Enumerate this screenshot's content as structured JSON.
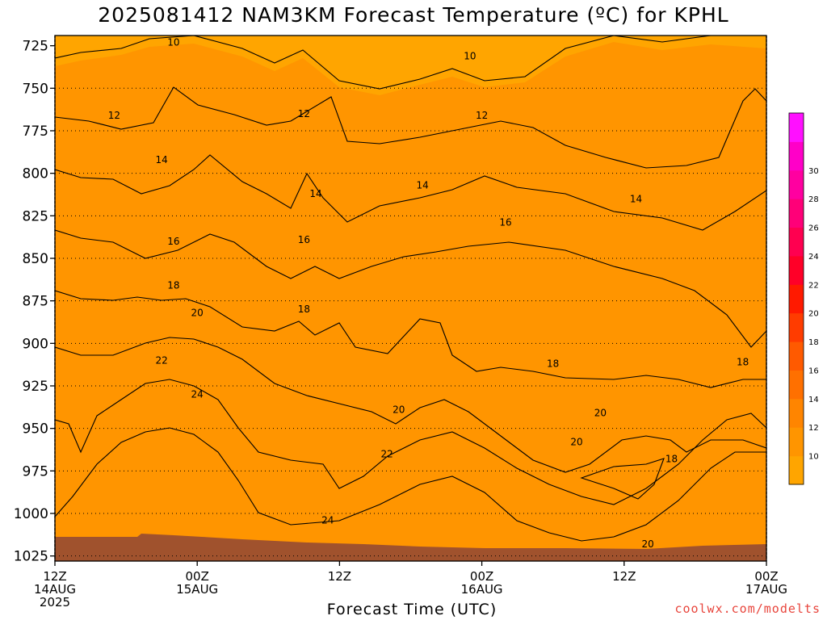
{
  "chart_data": {
    "type": "contour",
    "title": "2025081412 NAM3KM Forecast Temperature (ºC) for KPHL",
    "xlabel": "Forecast Time (UTC)",
    "credit": "coolwx.com/modelts",
    "y_axis": {
      "quantity": "pressure (hPa)",
      "inverted": true,
      "ylim": [
        1028,
        719
      ],
      "ticks": [
        725,
        750,
        775,
        800,
        825,
        850,
        875,
        900,
        925,
        950,
        975,
        1000,
        1025
      ]
    },
    "x_axis": {
      "xlim": [
        "2025-08-14T12:00Z",
        "2025-08-17T00:00Z"
      ],
      "ticks": [
        {
          "time": "2025-08-14T12:00Z",
          "lines": [
            "12Z",
            "14AUG",
            "2025"
          ]
        },
        {
          "time": "2025-08-15T00:00Z",
          "lines": [
            "00Z",
            "15AUG"
          ]
        },
        {
          "time": "2025-08-15T12:00Z",
          "lines": [
            "12Z"
          ]
        },
        {
          "time": "2025-08-16T00:00Z",
          "lines": [
            "00Z",
            "16AUG"
          ]
        },
        {
          "time": "2025-08-16T12:00Z",
          "lines": [
            "12Z"
          ]
        },
        {
          "time": "2025-08-17T00:00Z",
          "lines": [
            "00Z",
            "17AUG"
          ]
        }
      ]
    },
    "grid": "dotted horizontal lines at pressure ticks",
    "colorbar": {
      "placement": "right",
      "ticks": [
        10,
        12,
        14,
        16,
        18,
        20,
        22,
        24,
        26,
        28,
        30
      ],
      "colors": [
        "#ffa500",
        "#ff9500",
        "#ff8500",
        "#ff7000",
        "#ff5a00",
        "#ff3c00",
        "#ff1a00",
        "#ff0028",
        "#ff0050",
        "#ff0078",
        "#ff00a0",
        "#ff00c8",
        "#ff10ff"
      ]
    },
    "contour_labels": [
      {
        "value": "10",
        "time": "2025-08-14T22:00Z",
        "pressure": 723
      },
      {
        "value": "10",
        "time": "2025-08-15T23:00Z",
        "pressure": 731
      },
      {
        "value": "12",
        "time": "2025-08-14T17:00Z",
        "pressure": 766
      },
      {
        "value": "12",
        "time": "2025-08-15T09:00Z",
        "pressure": 765
      },
      {
        "value": "12",
        "time": "2025-08-16T00:00Z",
        "pressure": 766
      },
      {
        "value": "14",
        "time": "2025-08-14T21:00Z",
        "pressure": 792
      },
      {
        "value": "14",
        "time": "2025-08-15T10:00Z",
        "pressure": 812
      },
      {
        "value": "14",
        "time": "2025-08-15T19:00Z",
        "pressure": 807
      },
      {
        "value": "14",
        "time": "2025-08-16T13:00Z",
        "pressure": 815
      },
      {
        "value": "16",
        "time": "2025-08-14T22:00Z",
        "pressure": 840
      },
      {
        "value": "16",
        "time": "2025-08-15T09:00Z",
        "pressure": 839
      },
      {
        "value": "16",
        "time": "2025-08-16T02:00Z",
        "pressure": 829
      },
      {
        "value": "18",
        "time": "2025-08-14T22:00Z",
        "pressure": 866
      },
      {
        "value": "18",
        "time": "2025-08-15T09:00Z",
        "pressure": 880
      },
      {
        "value": "18",
        "time": "2025-08-16T06:00Z",
        "pressure": 912
      },
      {
        "value": "18",
        "time": "2025-08-16T22:00Z",
        "pressure": 911
      },
      {
        "value": "18",
        "time": "2025-08-16T16:00Z",
        "pressure": 968
      },
      {
        "value": "20",
        "time": "2025-08-15T00:00Z",
        "pressure": 882
      },
      {
        "value": "20",
        "time": "2025-08-15T17:00Z",
        "pressure": 939
      },
      {
        "value": "20",
        "time": "2025-08-16T10:00Z",
        "pressure": 941
      },
      {
        "value": "20",
        "time": "2025-08-16T08:00Z",
        "pressure": 958
      },
      {
        "value": "20",
        "time": "2025-08-16T14:00Z",
        "pressure": 1018
      },
      {
        "value": "22",
        "time": "2025-08-14T21:00Z",
        "pressure": 910
      },
      {
        "value": "22",
        "time": "2025-08-15T16:00Z",
        "pressure": 965
      },
      {
        "value": "24",
        "time": "2025-08-15T00:00Z",
        "pressure": 930
      },
      {
        "value": "24",
        "time": "2025-08-15T11:00Z",
        "pressure": 1004
      }
    ]
  }
}
